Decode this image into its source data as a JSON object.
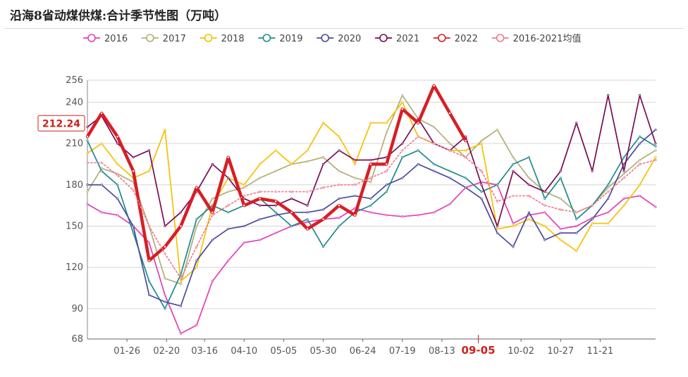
{
  "header": {
    "title": "沿海8省动煤供煤:合计季节性图（万吨）"
  },
  "chart_data": {
    "type": "line",
    "title": "沿海8省动煤供煤:合计季节性图（万吨）",
    "unit": "万吨",
    "ylim": [
      68,
      256
    ],
    "yticks": [
      68,
      90,
      120,
      150,
      180,
      210,
      240,
      256
    ],
    "xticks": [
      "01-26",
      "02-20",
      "03-16",
      "04-10",
      "05-05",
      "05-30",
      "06-24",
      "07-19",
      "08-13",
      "09-05",
      "10-02",
      "10-27",
      "11-21"
    ],
    "highlighted_x_label": "09-05",
    "last_value_label": "212.24",
    "x_days": [
      1,
      10,
      20,
      30,
      40,
      50,
      60,
      70,
      80,
      90,
      100,
      110,
      120,
      130,
      140,
      150,
      160,
      170,
      180,
      190,
      200,
      210,
      220,
      230,
      240,
      250,
      260,
      270,
      280,
      290,
      300,
      310,
      320,
      330,
      340,
      350,
      360
    ],
    "series": [
      {
        "name": "2016",
        "color": "#e040b8",
        "values": [
          166,
          160,
          158,
          150,
          138,
          100,
          72,
          78,
          110,
          125,
          138,
          140,
          145,
          150,
          153,
          155,
          156,
          163,
          160,
          158,
          157,
          158,
          160,
          166,
          178,
          182,
          180,
          152,
          158,
          160,
          148,
          150,
          156,
          160,
          170,
          172,
          164
        ]
      },
      {
        "name": "2017",
        "color": "#b3ad78",
        "values": [
          175,
          192,
          188,
          182,
          150,
          112,
          108,
          150,
          170,
          175,
          178,
          185,
          190,
          195,
          197,
          200,
          190,
          185,
          182,
          218,
          245,
          228,
          222,
          210,
          200,
          212,
          220,
          200,
          185,
          175,
          170,
          160,
          165,
          178,
          188,
          198,
          205
        ]
      },
      {
        "name": "2018",
        "color": "#f5c000",
        "values": [
          203,
          210,
          195,
          185,
          190,
          220,
          110,
          120,
          165,
          185,
          180,
          195,
          205,
          195,
          205,
          225,
          215,
          195,
          225,
          225,
          240,
          215,
          210,
          205,
          205,
          210,
          148,
          150,
          155,
          150,
          140,
          132,
          152,
          152,
          165,
          180,
          200
        ]
      },
      {
        "name": "2019",
        "color": "#1e8a8a",
        "values": [
          212,
          190,
          180,
          145,
          110,
          90,
          115,
          155,
          165,
          160,
          165,
          170,
          160,
          150,
          155,
          135,
          150,
          160,
          165,
          175,
          200,
          205,
          195,
          190,
          185,
          175,
          180,
          195,
          200,
          170,
          185,
          155,
          165,
          180,
          200,
          215,
          208
        ]
      },
      {
        "name": "2020",
        "color": "#4a4a9e",
        "values": [
          180,
          180,
          170,
          150,
          100,
          95,
          92,
          125,
          140,
          148,
          150,
          155,
          158,
          160,
          160,
          162,
          170,
          172,
          170,
          180,
          185,
          195,
          190,
          185,
          178,
          170,
          145,
          135,
          160,
          140,
          145,
          145,
          155,
          170,
          195,
          210,
          220
        ]
      },
      {
        "name": "2021",
        "color": "#7a0b55",
        "values": [
          222,
          230,
          210,
          200,
          205,
          150,
          160,
          175,
          195,
          185,
          170,
          165,
          165,
          170,
          165,
          195,
          205,
          198,
          198,
          200,
          210,
          228,
          210,
          205,
          215,
          180,
          150,
          190,
          180,
          175,
          190,
          225,
          190,
          245,
          190,
          245,
          210
        ]
      },
      {
        "name": "2022",
        "color": "#d81e24",
        "values": [
          215,
          232,
          215,
          190,
          125,
          135,
          150,
          178,
          160,
          200,
          165,
          170,
          168,
          160,
          148,
          155,
          165,
          158,
          195,
          195,
          235,
          225,
          252,
          232,
          212
        ]
      },
      {
        "name": "2016-2021均值",
        "color": "#f07a8e",
        "dashed": true,
        "values": [
          196,
          196,
          187,
          176,
          150,
          130,
          112,
          135,
          158,
          165,
          172,
          175,
          175,
          175,
          175,
          178,
          180,
          180,
          185,
          190,
          205,
          215,
          210,
          205,
          200,
          190,
          168,
          172,
          172,
          165,
          162,
          160,
          165,
          175,
          185,
          195,
          198
        ]
      }
    ]
  }
}
